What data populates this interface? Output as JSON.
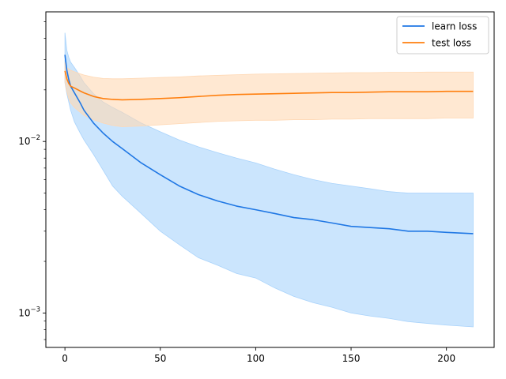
{
  "chart_data": {
    "type": "line",
    "title": "",
    "xlabel": "",
    "ylabel": "",
    "xlim": [
      -10,
      225
    ],
    "ylim": [
      0.00063,
      0.057
    ],
    "yscale": "log",
    "grid": false,
    "legend_position": "top-right",
    "x_ticks": [
      0,
      50,
      100,
      150,
      200
    ],
    "x_tick_labels": [
      "0",
      "50",
      "100",
      "150",
      "200"
    ],
    "y_major_ticks": [
      {
        "value": 0.001,
        "base": "10",
        "exp": "−3"
      },
      {
        "value": 0.01,
        "base": "10",
        "exp": "−2"
      }
    ],
    "y_minor_ticks": [
      0.0007,
      0.0008,
      0.0009,
      0.002,
      0.003,
      0.004,
      0.005,
      0.006,
      0.007,
      0.008,
      0.009,
      0.02,
      0.03,
      0.04,
      0.05
    ],
    "series": [
      {
        "name": "learn loss",
        "color": "#1f77e4",
        "band_color": "#a9d3fb",
        "x": [
          0,
          1,
          2,
          3,
          5,
          8,
          10,
          15,
          20,
          25,
          30,
          40,
          50,
          60,
          70,
          80,
          90,
          100,
          110,
          120,
          130,
          140,
          150,
          160,
          170,
          180,
          190,
          200,
          214
        ],
        "mean": [
          0.032,
          0.026,
          0.023,
          0.021,
          0.0192,
          0.0168,
          0.0152,
          0.0128,
          0.0112,
          0.01,
          0.0091,
          0.0075,
          0.0064,
          0.0055,
          0.0049,
          0.0045,
          0.0042,
          0.004,
          0.0038,
          0.0036,
          0.0035,
          0.00335,
          0.0032,
          0.00315,
          0.0031,
          0.003,
          0.003,
          0.00295,
          0.0029
        ],
        "upper": [
          0.043,
          0.034,
          0.031,
          0.029,
          0.027,
          0.024,
          0.022,
          0.019,
          0.017,
          0.0158,
          0.0148,
          0.0128,
          0.0114,
          0.0102,
          0.0093,
          0.0086,
          0.008,
          0.0075,
          0.0069,
          0.0064,
          0.006,
          0.0057,
          0.0055,
          0.0053,
          0.0051,
          0.005,
          0.005,
          0.005,
          0.005
        ],
        "lower": [
          0.022,
          0.019,
          0.017,
          0.0152,
          0.013,
          0.0112,
          0.0102,
          0.0084,
          0.0068,
          0.0055,
          0.0048,
          0.0038,
          0.003,
          0.0025,
          0.0021,
          0.0019,
          0.0017,
          0.0016,
          0.0014,
          0.00125,
          0.00115,
          0.00108,
          0.001,
          0.00096,
          0.00093,
          0.00089,
          0.00087,
          0.00085,
          0.00083
        ]
      },
      {
        "name": "test loss",
        "color": "#ff7f0e",
        "band_color": "#ffd8b4",
        "x": [
          0,
          1,
          2,
          3,
          5,
          8,
          10,
          15,
          20,
          25,
          30,
          40,
          50,
          60,
          70,
          80,
          90,
          100,
          110,
          120,
          130,
          140,
          150,
          160,
          170,
          180,
          190,
          200,
          214
        ],
        "mean": [
          0.0258,
          0.0232,
          0.0218,
          0.021,
          0.0205,
          0.0197,
          0.0192,
          0.0183,
          0.0178,
          0.0176,
          0.0175,
          0.0176,
          0.0178,
          0.018,
          0.0183,
          0.0186,
          0.0188,
          0.0189,
          0.019,
          0.0191,
          0.0192,
          0.0193,
          0.0193,
          0.0194,
          0.0195,
          0.0195,
          0.0195,
          0.0196,
          0.0196
        ],
        "upper": [
          0.029,
          0.027,
          0.0265,
          0.026,
          0.0255,
          0.0248,
          0.0244,
          0.0237,
          0.0233,
          0.0232,
          0.0232,
          0.0234,
          0.0236,
          0.0238,
          0.0241,
          0.0243,
          0.0245,
          0.0247,
          0.0248,
          0.0249,
          0.025,
          0.0251,
          0.0252,
          0.0252,
          0.0253,
          0.0253,
          0.0254,
          0.0254,
          0.0254
        ],
        "lower": [
          0.0222,
          0.0195,
          0.0178,
          0.0168,
          0.0158,
          0.0148,
          0.0142,
          0.0134,
          0.0128,
          0.0124,
          0.0122,
          0.0123,
          0.0125,
          0.0127,
          0.0129,
          0.0131,
          0.0132,
          0.0133,
          0.0133,
          0.0134,
          0.0134,
          0.0135,
          0.0135,
          0.0136,
          0.0136,
          0.0136,
          0.0136,
          0.0137,
          0.0137
        ]
      }
    ]
  }
}
